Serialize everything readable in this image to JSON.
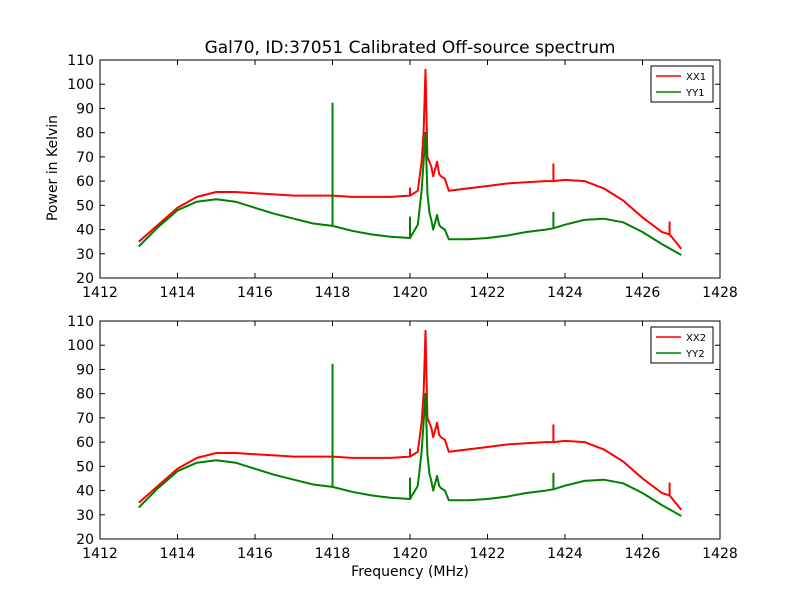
{
  "figure": {
    "title": "Gal70, ID:37051 Calibrated Off-source spectrum",
    "ylabel": "Power in Kelvin",
    "xlabel": "Frequency (MHz)"
  },
  "colors": {
    "xx": "#ff0000",
    "yy": "#008000"
  },
  "chart_data": [
    {
      "type": "line",
      "xlim": [
        1412,
        1428
      ],
      "ylim": [
        20,
        110
      ],
      "xticks": [
        1412,
        1414,
        1416,
        1418,
        1420,
        1422,
        1424,
        1426,
        1428
      ],
      "yticks": [
        20,
        30,
        40,
        50,
        60,
        70,
        80,
        90,
        100,
        110
      ],
      "legend_position": "top-right",
      "series": [
        {
          "name": "XX1",
          "color": "#ff0000",
          "x": [
            1413.0,
            1413.5,
            1414.0,
            1414.5,
            1415.0,
            1415.5,
            1416.0,
            1416.5,
            1417.0,
            1417.5,
            1418.0,
            1418.0,
            1418.0,
            1418.5,
            1419.0,
            1419.5,
            1420.0,
            1420.0,
            1420.0,
            1420.2,
            1420.3,
            1420.35,
            1420.4,
            1420.45,
            1420.5,
            1420.55,
            1420.6,
            1420.7,
            1420.75,
            1420.8,
            1420.9,
            1421.0,
            1421.5,
            1422.0,
            1422.5,
            1423.0,
            1423.5,
            1423.7,
            1423.7,
            1423.7,
            1424.0,
            1424.5,
            1425.0,
            1425.5,
            1426.0,
            1426.5,
            1426.7,
            1426.7,
            1426.7,
            1427.0
          ],
          "y": [
            35,
            42,
            49,
            53.5,
            55.5,
            55.5,
            55,
            54.5,
            54,
            54,
            54,
            68,
            54,
            53.5,
            53.5,
            53.5,
            54,
            57,
            54,
            56,
            68,
            80,
            106,
            70,
            68,
            66,
            62,
            68,
            63,
            62,
            61,
            56,
            57,
            58,
            59,
            59.5,
            60,
            60,
            67,
            60,
            60.5,
            60,
            57,
            52,
            45,
            39,
            38,
            43,
            38,
            32
          ]
        },
        {
          "name": "YY1",
          "color": "#008000",
          "x": [
            1413.0,
            1413.5,
            1414.0,
            1414.5,
            1415.0,
            1415.5,
            1416.0,
            1416.5,
            1417.0,
            1417.5,
            1418.0,
            1418.0,
            1418.0,
            1418.5,
            1419.0,
            1419.5,
            1420.0,
            1420.0,
            1420.0,
            1420.2,
            1420.3,
            1420.35,
            1420.4,
            1420.45,
            1420.5,
            1420.55,
            1420.6,
            1420.7,
            1420.75,
            1420.8,
            1420.9,
            1421.0,
            1421.5,
            1422.0,
            1422.5,
            1423.0,
            1423.5,
            1423.7,
            1423.7,
            1423.7,
            1424.0,
            1424.5,
            1425.0,
            1425.5,
            1426.0,
            1426.5,
            1427.0
          ],
          "y": [
            33,
            41,
            48,
            51.5,
            52.5,
            51.5,
            49,
            46.5,
            44.5,
            42.5,
            41.5,
            92,
            41.5,
            39.5,
            38,
            37,
            36.5,
            45,
            36.5,
            42,
            56,
            68,
            80,
            55,
            47,
            44,
            40,
            46,
            42,
            41,
            40,
            36,
            36,
            36.5,
            37.5,
            39,
            40,
            40.5,
            47,
            40.5,
            42,
            44,
            44.5,
            43,
            39,
            34,
            29.5
          ]
        }
      ]
    },
    {
      "type": "line",
      "xlim": [
        1412,
        1428
      ],
      "ylim": [
        20,
        110
      ],
      "xticks": [
        1412,
        1414,
        1416,
        1418,
        1420,
        1422,
        1424,
        1426,
        1428
      ],
      "yticks": [
        20,
        30,
        40,
        50,
        60,
        70,
        80,
        90,
        100,
        110
      ],
      "legend_position": "top-right",
      "series": [
        {
          "name": "XX2",
          "color": "#ff0000",
          "x": [
            1413.0,
            1413.5,
            1414.0,
            1414.5,
            1415.0,
            1415.5,
            1416.0,
            1416.5,
            1417.0,
            1417.5,
            1418.0,
            1418.0,
            1418.0,
            1418.5,
            1419.0,
            1419.5,
            1420.0,
            1420.0,
            1420.0,
            1420.2,
            1420.3,
            1420.35,
            1420.4,
            1420.45,
            1420.5,
            1420.55,
            1420.6,
            1420.7,
            1420.75,
            1420.8,
            1420.9,
            1421.0,
            1421.5,
            1422.0,
            1422.5,
            1423.0,
            1423.5,
            1423.7,
            1423.7,
            1423.7,
            1424.0,
            1424.5,
            1425.0,
            1425.5,
            1426.0,
            1426.5,
            1426.7,
            1426.7,
            1426.7,
            1427.0
          ],
          "y": [
            35,
            42,
            49,
            53.5,
            55.5,
            55.5,
            55,
            54.5,
            54,
            54,
            54,
            68,
            54,
            53.5,
            53.5,
            53.5,
            54,
            57,
            54,
            56,
            68,
            80,
            106,
            70,
            68,
            66,
            62,
            68,
            63,
            62,
            61,
            56,
            57,
            58,
            59,
            59.5,
            60,
            60,
            67,
            60,
            60.5,
            60,
            57,
            52,
            45,
            39,
            38,
            43,
            38,
            32
          ]
        },
        {
          "name": "YY2",
          "color": "#008000",
          "x": [
            1413.0,
            1413.5,
            1414.0,
            1414.5,
            1415.0,
            1415.5,
            1416.0,
            1416.5,
            1417.0,
            1417.5,
            1418.0,
            1418.0,
            1418.0,
            1418.5,
            1419.0,
            1419.5,
            1420.0,
            1420.0,
            1420.0,
            1420.2,
            1420.3,
            1420.35,
            1420.4,
            1420.45,
            1420.5,
            1420.55,
            1420.6,
            1420.7,
            1420.75,
            1420.8,
            1420.9,
            1421.0,
            1421.5,
            1422.0,
            1422.5,
            1423.0,
            1423.5,
            1423.7,
            1423.7,
            1423.7,
            1424.0,
            1424.5,
            1425.0,
            1425.5,
            1426.0,
            1426.5,
            1427.0
          ],
          "y": [
            33,
            41,
            48,
            51.5,
            52.5,
            51.5,
            49,
            46.5,
            44.5,
            42.5,
            41.5,
            92,
            41.5,
            39.5,
            38,
            37,
            36.5,
            45,
            36.5,
            42,
            56,
            68,
            80,
            55,
            47,
            44,
            40,
            46,
            42,
            41,
            40,
            36,
            36,
            36.5,
            37.5,
            39,
            40,
            40.5,
            47,
            40.5,
            42,
            44,
            44.5,
            43,
            39,
            34,
            29.5
          ]
        }
      ]
    }
  ]
}
